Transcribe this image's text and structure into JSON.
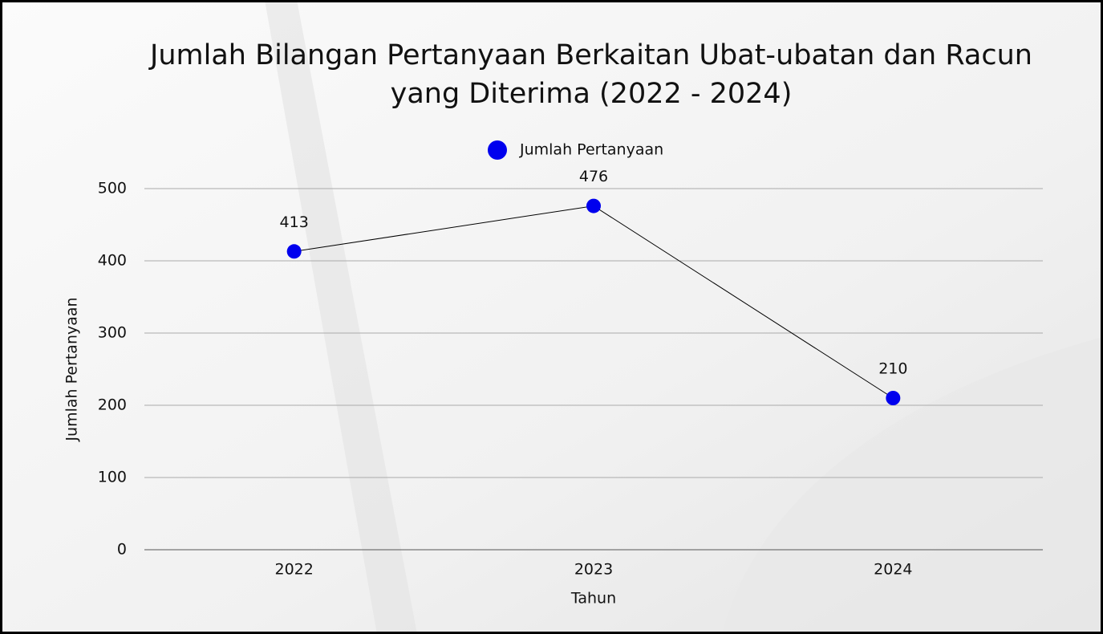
{
  "chart_data": {
    "type": "line",
    "title": [
      "Jumlah Bilangan Pertanyaan Berkaitan Ubat-ubatan dan Racun",
      "yang Diterima (2022 - 2024)"
    ],
    "x_label": "Tahun",
    "y_label": "Jumlah Pertanyaan",
    "categories": [
      "2022",
      "2023",
      "2024"
    ],
    "series": [
      {
        "name": "Jumlah Pertanyaan",
        "color": "#0000ee",
        "values": [
          413,
          476,
          210
        ]
      }
    ],
    "ylim": [
      0,
      500
    ],
    "yticks": [
      0,
      100,
      200,
      300,
      400,
      500
    ],
    "grid": true,
    "legend": "top"
  }
}
